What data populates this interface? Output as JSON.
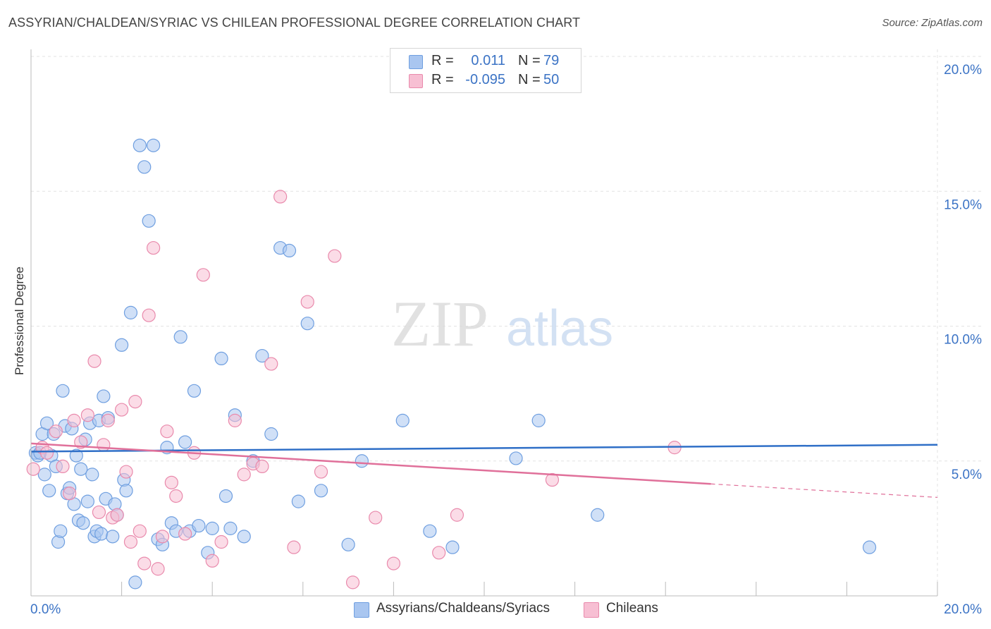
{
  "title": "ASSYRIAN/CHALDEAN/SYRIAC VS CHILEAN PROFESSIONAL DEGREE CORRELATION CHART",
  "source": "Source: ZipAtlas.com",
  "watermark": {
    "zip": "ZIP",
    "atlas": "atlas"
  },
  "legend": {
    "rows": [
      {
        "r_label": "R =",
        "r_value": "0.011",
        "n_label": "N =",
        "n_value": "79",
        "color": "#a9c6f0",
        "border": "#6f9fe0"
      },
      {
        "r_label": "R =",
        "r_value": "-0.095",
        "n_label": "N =",
        "n_value": "50",
        "color": "#f7bfd3",
        "border": "#e98aac"
      }
    ]
  },
  "bottom_legend": [
    {
      "label": "Assyrians/Chaldeans/Syriacs",
      "color": "#a9c6f0",
      "border": "#6f9fe0"
    },
    {
      "label": "Chileans",
      "color": "#f7bfd3",
      "border": "#e98aac"
    }
  ],
  "chart_data": {
    "type": "scatter",
    "title": "ASSYRIAN/CHALDEAN/SYRIAC VS CHILEAN PROFESSIONAL DEGREE CORRELATION CHART",
    "xlabel": "",
    "ylabel": "Professional Degree",
    "xlim": [
      0,
      20
    ],
    "ylim": [
      0,
      20
    ],
    "x_tick_labels": [
      "0.0%",
      "20.0%"
    ],
    "y_ticks": [
      5,
      10,
      15,
      20
    ],
    "y_tick_labels": [
      "5.0%",
      "10.0%",
      "15.0%",
      "20.0%"
    ],
    "grid": true,
    "series": [
      {
        "name": "Assyrians/Chaldeans/Syriacs",
        "color": "#6f9fe0",
        "fill": "#a9c6f0",
        "trend_color": "#2f6fc7",
        "trend": {
          "x": [
            0,
            20
          ],
          "y": [
            5.35,
            5.6
          ]
        },
        "x": [
          0.1,
          0.15,
          0.2,
          0.25,
          0.3,
          0.35,
          0.4,
          0.45,
          0.5,
          0.55,
          0.6,
          0.65,
          0.7,
          0.75,
          0.8,
          0.85,
          0.9,
          0.95,
          1.0,
          1.05,
          1.1,
          1.15,
          1.2,
          1.25,
          1.3,
          1.35,
          1.4,
          1.45,
          1.5,
          1.55,
          1.6,
          1.65,
          1.7,
          1.8,
          1.85,
          1.9,
          2.0,
          2.05,
          2.1,
          2.2,
          2.3,
          2.4,
          2.5,
          2.6,
          2.7,
          2.8,
          2.9,
          3.0,
          3.1,
          3.2,
          3.3,
          3.4,
          3.5,
          3.6,
          3.7,
          3.9,
          4.0,
          4.2,
          4.3,
          4.4,
          4.5,
          4.7,
          4.9,
          5.1,
          5.3,
          5.5,
          5.7,
          5.9,
          6.1,
          6.4,
          7.0,
          7.3,
          8.2,
          8.8,
          9.3,
          10.7,
          11.2,
          12.5,
          18.5
        ],
        "y": [
          5.3,
          5.2,
          5.3,
          6.0,
          4.5,
          6.4,
          3.9,
          5.2,
          6.0,
          4.8,
          2.0,
          2.4,
          7.6,
          6.3,
          3.8,
          4.0,
          6.2,
          3.4,
          5.2,
          2.8,
          4.7,
          2.7,
          5.8,
          3.5,
          6.4,
          4.5,
          2.2,
          2.4,
          6.5,
          2.3,
          7.4,
          3.6,
          6.6,
          2.2,
          3.4,
          3.0,
          9.3,
          4.3,
          3.9,
          10.5,
          0.5,
          16.7,
          15.9,
          13.9,
          16.7,
          2.1,
          1.9,
          5.5,
          2.7,
          2.4,
          9.6,
          5.7,
          2.4,
          7.6,
          2.6,
          1.6,
          2.5,
          8.8,
          3.7,
          2.5,
          6.7,
          2.2,
          5.0,
          8.9,
          6.0,
          12.9,
          12.8,
          3.5,
          10.1,
          3.9,
          1.9,
          5.0,
          6.5,
          2.4,
          1.8,
          5.1,
          6.5,
          3.0,
          1.8
        ]
      },
      {
        "name": "Chileans",
        "color": "#e98aac",
        "fill": "#f7bfd3",
        "trend_color": "#e0709a",
        "trend": {
          "x": [
            0,
            15
          ],
          "y": [
            5.65,
            4.15
          ]
        },
        "trend_dashed": {
          "x": [
            15,
            20
          ],
          "y": [
            4.15,
            3.65
          ]
        },
        "x": [
          0.05,
          0.25,
          0.35,
          0.55,
          0.7,
          0.85,
          0.95,
          1.1,
          1.25,
          1.4,
          1.5,
          1.6,
          1.7,
          1.8,
          1.9,
          2.0,
          2.1,
          2.2,
          2.3,
          2.4,
          2.5,
          2.6,
          2.7,
          2.8,
          2.9,
          3.0,
          3.1,
          3.2,
          3.4,
          3.6,
          3.8,
          4.0,
          4.2,
          4.5,
          4.7,
          4.9,
          5.1,
          5.3,
          5.5,
          5.8,
          6.1,
          6.4,
          6.7,
          7.1,
          7.6,
          8.0,
          9.0,
          9.4,
          11.5,
          14.2
        ],
        "y": [
          4.7,
          5.5,
          5.3,
          6.1,
          4.8,
          3.8,
          6.5,
          5.7,
          6.7,
          8.7,
          3.1,
          5.6,
          6.5,
          2.9,
          3.0,
          6.9,
          4.6,
          2.0,
          7.2,
          2.4,
          1.2,
          10.4,
          12.9,
          1.0,
          2.2,
          6.1,
          4.2,
          3.7,
          2.3,
          5.3,
          11.9,
          1.3,
          2.0,
          6.5,
          4.5,
          4.9,
          4.8,
          8.6,
          14.8,
          1.8,
          10.9,
          4.6,
          12.6,
          0.5,
          2.9,
          1.2,
          1.6,
          3.0,
          4.3,
          5.5
        ]
      }
    ]
  }
}
